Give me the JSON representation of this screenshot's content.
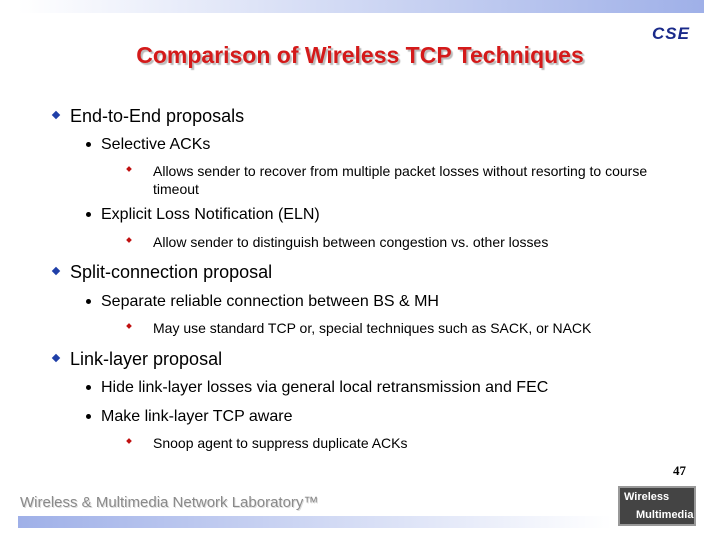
{
  "header": {
    "title": "Comparison of Wireless TCP Techniques",
    "logo": "CSE"
  },
  "bullets": [
    {
      "text": "End-to-End proposals",
      "children": [
        {
          "text": "Selective ACKs",
          "children": [
            {
              "text": "Allows sender to recover from multiple packet losses without resorting to course timeout"
            }
          ]
        },
        {
          "text": "Explicit Loss Notification (ELN)",
          "children": [
            {
              "text": "Allow sender to distinguish between congestion vs. other losses"
            }
          ]
        }
      ]
    },
    {
      "text": "Split-connection proposal",
      "children": [
        {
          "text": "Separate reliable connection between BS & MH",
          "children": [
            {
              "text": "May use standard TCP or, special techniques such as SACK, or NACK"
            }
          ]
        }
      ]
    },
    {
      "text": "Link-layer proposal",
      "children": [
        {
          "text": "Hide link-layer losses via general local retransmission and FEC",
          "children": []
        },
        {
          "text": "Make link-layer TCP aware",
          "children": [
            {
              "text": "Snoop agent to suppress duplicate ACKs"
            }
          ]
        }
      ]
    }
  ],
  "footer": {
    "page": "47",
    "lab": "Wireless & Multimedia Network Laboratory™",
    "logo_lines": [
      "Wireless",
      "Multimedia"
    ]
  }
}
